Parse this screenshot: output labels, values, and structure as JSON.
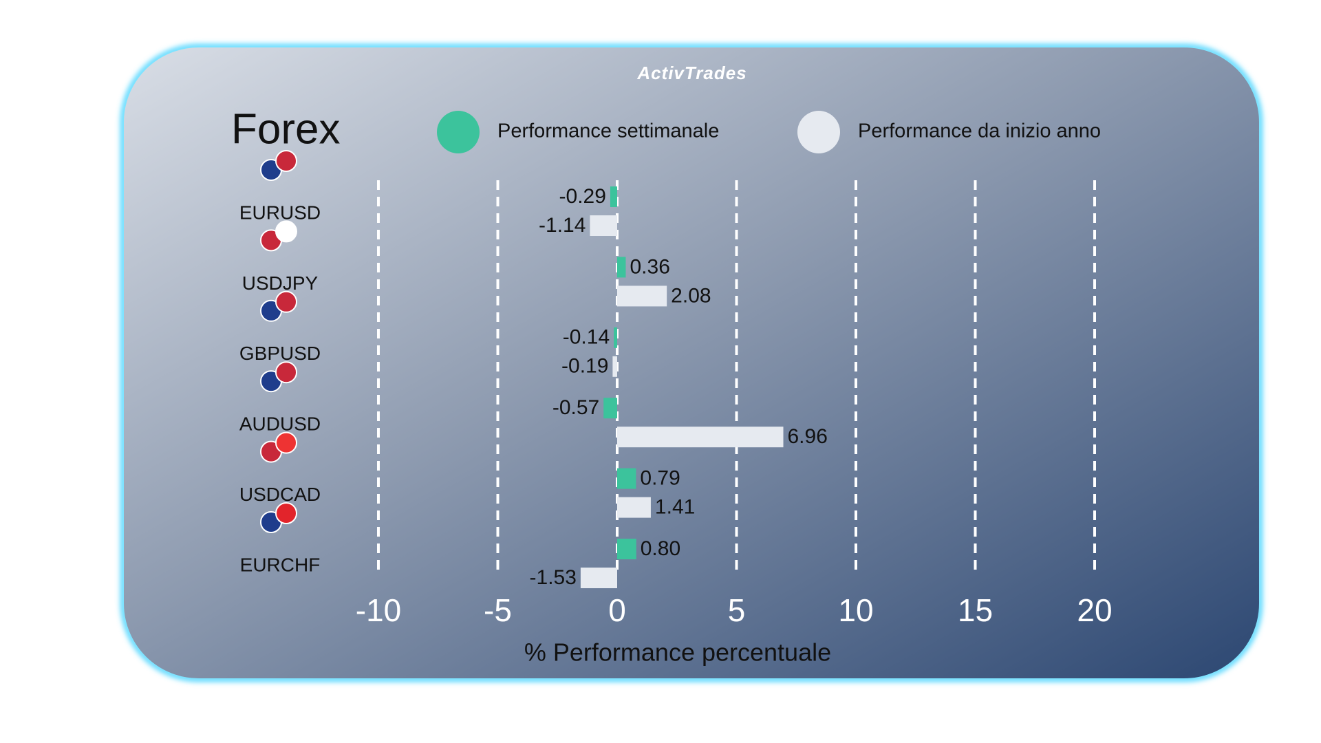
{
  "brand": "ActivTrades",
  "chart_data": {
    "type": "barh",
    "title": "Forex",
    "categories": [
      "EURUSD",
      "USDJPY",
      "GBPUSD",
      "AUDUSD",
      "USDCAD",
      "EURCHF"
    ],
    "series": [
      {
        "name": "Performance settimanale",
        "color": "#3cc39c",
        "values": [
          -0.29,
          0.36,
          -0.14,
          -0.57,
          0.79,
          0.8
        ],
        "value_labels": [
          "-0.29",
          "0.36",
          "-0.14",
          "-0.57",
          "0.79",
          "0.80"
        ]
      },
      {
        "name": "Performance da inizio anno",
        "color": "#e6eaf0",
        "values": [
          -1.14,
          2.08,
          -0.19,
          6.96,
          1.41,
          -1.53
        ]
      }
    ],
    "xlabel": "% Performance percentuale",
    "xlim": [
      -10,
      20
    ],
    "xticks": [
      -10,
      -5,
      0,
      5,
      10,
      15,
      20
    ],
    "grid": true
  }
}
